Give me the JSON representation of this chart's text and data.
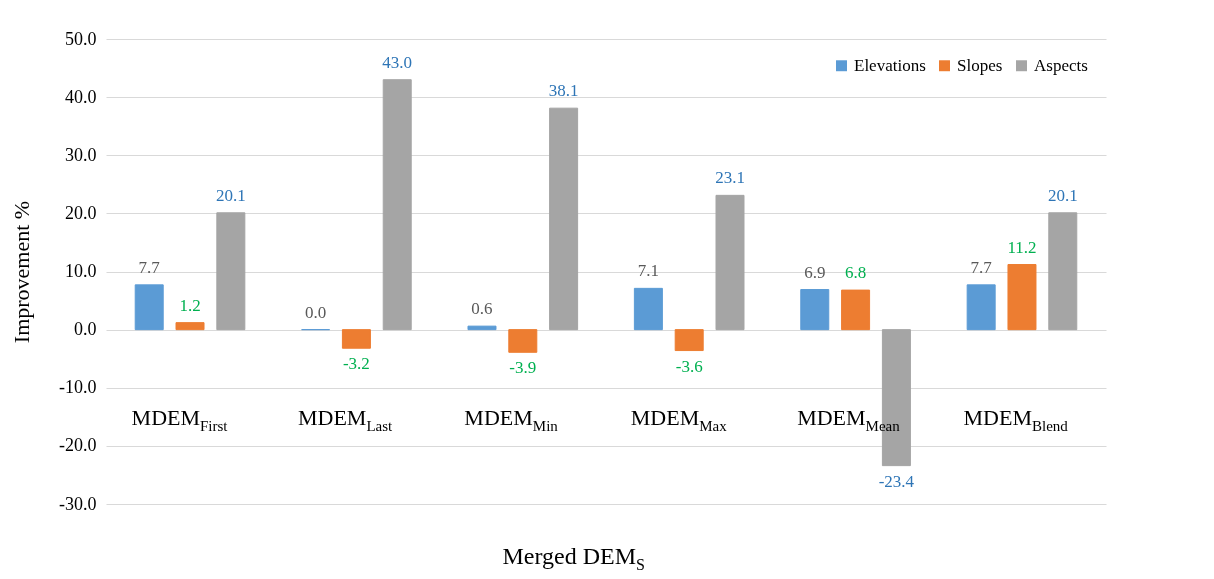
{
  "chart_data": {
    "type": "bar",
    "categories": [
      "MDEM$_{First}$",
      "MDEM$_{Last}$",
      "MDEM$_{Min}$",
      "MDEM$_{Max}$",
      "MDEM$_{Mean}$",
      "MDEM$_{Blend}$"
    ],
    "series": [
      {
        "name": "Elevations",
        "color": "#5b9bd5",
        "values": [
          7.7,
          0.0,
          0.6,
          7.1,
          6.9,
          7.7
        ],
        "value_labels": [
          "7.7",
          "0.0",
          "0.6",
          "7.1",
          "6.9",
          "7.7"
        ]
      },
      {
        "name": "Slopes",
        "color": "#ed7d31",
        "values": [
          1.2,
          -3.2,
          -3.9,
          -3.6,
          6.8,
          11.2
        ],
        "value_labels": [
          "1.2",
          "-3.2",
          "-3.9",
          "-3.6",
          "6.8",
          "11.2"
        ]
      },
      {
        "name": "Aspects",
        "color": "#a5a5a5",
        "values": [
          20.1,
          43.0,
          38.1,
          23.1,
          -23.4,
          20.1
        ],
        "value_labels": [
          "20.1",
          "43.0",
          "38.1",
          "23.1",
          "-23.4",
          "20.1"
        ]
      }
    ],
    "xlabel": "Merged DEM$_{S}$",
    "ylabel": "Improvement %",
    "ylim": [
      -30,
      50
    ],
    "yticks": [
      {
        "value": -30,
        "label": "-30.0"
      },
      {
        "value": -20,
        "label": "-20.0"
      },
      {
        "value": -10,
        "label": "-10.0"
      },
      {
        "value": 0,
        "label": "0.0"
      },
      {
        "value": 10,
        "label": "10.0"
      },
      {
        "value": 20,
        "label": "20.0"
      },
      {
        "value": 30,
        "label": "30.0"
      },
      {
        "value": 40,
        "label": "40.0"
      },
      {
        "value": 50,
        "label": "50.0"
      }
    ],
    "grid": "y",
    "legend": "top right"
  }
}
